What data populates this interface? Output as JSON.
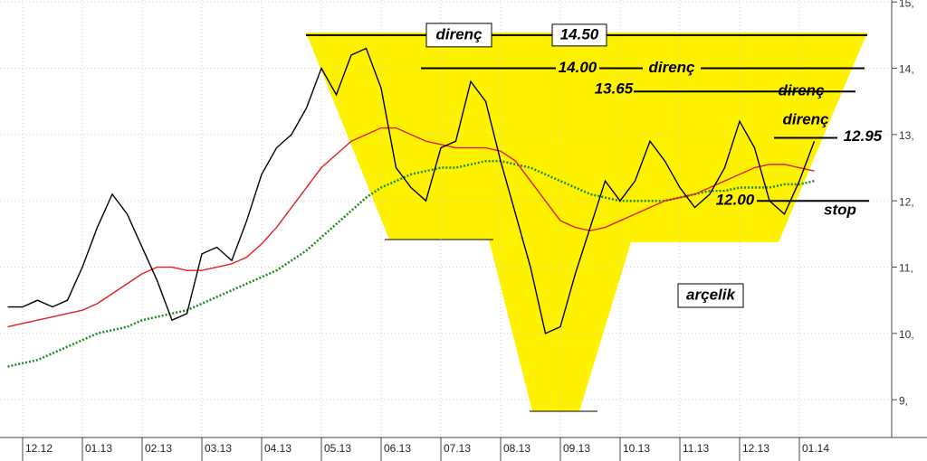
{
  "chart_data": {
    "type": "line",
    "categories": [
      null,
      "12.12",
      null,
      null,
      null,
      "01.13",
      null,
      null,
      null,
      "02.13",
      null,
      null,
      null,
      "03.13",
      null,
      null,
      null,
      "04.13",
      null,
      null,
      null,
      "05.13",
      null,
      null,
      null,
      "06.13",
      null,
      null,
      null,
      "07.13",
      null,
      null,
      null,
      "08.13",
      null,
      null,
      null,
      "09.13",
      null,
      null,
      null,
      "10.13",
      null,
      null,
      null,
      "11.13",
      null,
      null,
      null,
      "12.13",
      null,
      null,
      null,
      "01.14",
      null
    ],
    "series": [
      {
        "color": "#000000",
        "values": [
          10.4,
          10.4,
          10.5,
          10.4,
          10.5,
          11.0,
          11.6,
          12.1,
          11.8,
          11.3,
          10.8,
          10.2,
          10.3,
          11.2,
          11.3,
          11.1,
          11.7,
          12.4,
          12.8,
          13.0,
          13.4,
          14.0,
          13.6,
          14.2,
          14.3,
          13.7,
          12.5,
          12.2,
          12.0,
          12.8,
          12.9,
          13.8,
          13.5,
          12.6,
          11.8,
          11.0,
          10.0,
          10.1,
          10.9,
          11.6,
          12.3,
          12.0,
          12.3,
          12.9,
          12.6,
          12.2,
          11.9,
          12.1,
          12.5,
          13.2,
          12.8,
          12.0,
          11.8,
          12.3,
          12.9
        ]
      },
      {
        "color": "#e02020",
        "values": [
          10.1,
          10.15,
          10.2,
          10.25,
          10.3,
          10.35,
          10.45,
          10.6,
          10.75,
          10.9,
          11.0,
          11.0,
          10.95,
          10.95,
          11.0,
          11.05,
          11.15,
          11.35,
          11.6,
          11.9,
          12.2,
          12.5,
          12.7,
          12.9,
          13.0,
          13.1,
          13.1,
          13.0,
          12.9,
          12.85,
          12.8,
          12.8,
          12.8,
          12.75,
          12.6,
          12.3,
          12.0,
          11.7,
          11.6,
          11.55,
          11.6,
          11.7,
          11.8,
          11.9,
          12.0,
          12.05,
          12.1,
          12.2,
          12.3,
          12.4,
          12.5,
          12.55,
          12.55,
          12.5,
          12.45
        ]
      },
      {
        "color": "#1a8a1a",
        "dotted": true,
        "values": [
          9.5,
          9.55,
          9.6,
          9.7,
          9.8,
          9.9,
          10.0,
          10.05,
          10.1,
          10.2,
          10.25,
          10.3,
          10.35,
          10.45,
          10.55,
          10.65,
          10.75,
          10.85,
          10.95,
          11.1,
          11.25,
          11.45,
          11.65,
          11.85,
          12.05,
          12.2,
          12.3,
          12.4,
          12.45,
          12.5,
          12.5,
          12.55,
          12.6,
          12.6,
          12.55,
          12.5,
          12.4,
          12.3,
          12.2,
          12.1,
          12.05,
          12.0,
          12.0,
          12.0,
          12.0,
          12.05,
          12.1,
          12.15,
          12.15,
          12.2,
          12.2,
          12.2,
          12.25,
          12.25,
          12.3
        ]
      }
    ],
    "ylim": [
      8.43,
      15.03
    ],
    "yticks": [
      {
        "value": 9,
        "label": "9,"
      },
      {
        "value": 10,
        "label": "10,"
      },
      {
        "value": 11,
        "label": "11,"
      },
      {
        "value": 12,
        "label": "12,"
      },
      {
        "value": 13,
        "label": "13,"
      },
      {
        "value": 14,
        "label": "14,"
      },
      {
        "value": 15,
        "label": "15,"
      }
    ],
    "grid": true,
    "levels": [
      {
        "value": 14.5,
        "label": "14.50"
      },
      {
        "value": 14.0,
        "label": "14.00"
      },
      {
        "value": 13.65,
        "label": "13.65"
      },
      {
        "value": 12.95,
        "label": "12.95"
      },
      {
        "value": 12.0,
        "label": "12.00"
      }
    ],
    "annotations": [
      "direnç",
      "direnç",
      "direnç",
      "direnç",
      "stop",
      "arçelik"
    ]
  }
}
